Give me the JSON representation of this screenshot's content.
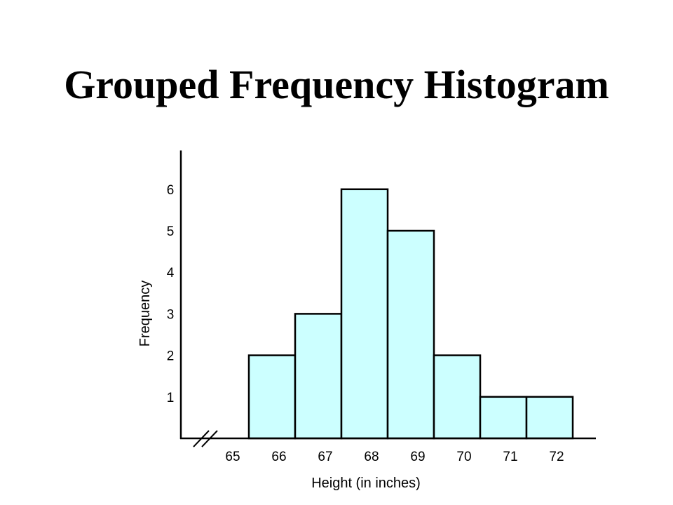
{
  "title": "Grouped Frequency Histogram",
  "colors": {
    "bar_fill": "#ccffff",
    "bar_stroke": "#000000",
    "axis": "#000000"
  },
  "chart_data": {
    "type": "bar",
    "title": "Grouped Frequency Histogram",
    "xlabel": "Height (in inches)",
    "ylabel": "Frequency",
    "categories": [
      "66",
      "67",
      "68",
      "69",
      "70",
      "71",
      "72"
    ],
    "values": [
      2,
      3,
      6,
      5,
      2,
      1,
      1
    ],
    "x_tick_labels": [
      "65",
      "66",
      "67",
      "68",
      "69",
      "70",
      "71",
      "72"
    ],
    "y_tick_labels": [
      "1",
      "2",
      "3",
      "4",
      "5",
      "6"
    ],
    "ylim": [
      0,
      6.8
    ],
    "axis_break": true,
    "grid": false,
    "legend": "none"
  }
}
